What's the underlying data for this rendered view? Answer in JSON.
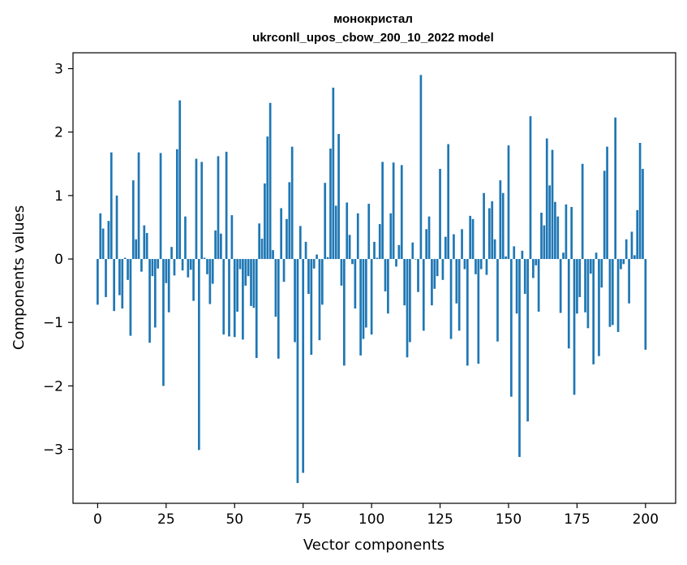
{
  "chart_data": {
    "type": "bar",
    "title": "монокристал",
    "subtitle": "ukrconll_upos_cbow_200_10_2022 model",
    "xlabel": "Vector components",
    "ylabel": "Components values",
    "xlim": [
      -9,
      211
    ],
    "ylim": [
      -3.85,
      3.25
    ],
    "xticks": [
      0,
      25,
      50,
      75,
      100,
      125,
      150,
      175,
      200
    ],
    "yticks": [
      -3,
      -2,
      -1,
      0,
      1,
      2,
      3
    ],
    "ytick_labels": [
      "−3",
      "−2",
      "−1",
      "0",
      "1",
      "2",
      "3"
    ],
    "grid": false,
    "bar_color": "#1f77b4",
    "values": [
      -0.72,
      0.72,
      0.48,
      -0.6,
      0.6,
      1.68,
      -0.82,
      1.0,
      -0.57,
      -0.78,
      0.02,
      -0.33,
      -1.21,
      1.24,
      0.31,
      1.68,
      -0.2,
      0.53,
      0.41,
      -1.32,
      -0.27,
      -1.08,
      -0.15,
      1.67,
      -2.0,
      -0.38,
      -0.84,
      0.19,
      -0.26,
      1.73,
      2.5,
      -0.18,
      0.67,
      -0.29,
      -0.17,
      -0.66,
      1.58,
      -3.01,
      1.53,
      0.02,
      -0.24,
      -0.71,
      -0.39,
      0.45,
      1.62,
      0.4,
      -1.19,
      1.69,
      -1.22,
      0.69,
      -1.23,
      -0.83,
      -0.16,
      -1.27,
      -0.42,
      -0.27,
      -0.74,
      -0.77,
      -1.56,
      0.56,
      0.32,
      1.19,
      1.93,
      2.46,
      0.14,
      -0.91,
      -1.57,
      0.8,
      -0.36,
      0.63,
      1.21,
      1.77,
      -1.31,
      -3.53,
      0.52,
      -3.37,
      0.27,
      -0.55,
      -1.51,
      -0.15,
      0.07,
      -1.28,
      -0.72,
      1.2,
      0.03,
      1.74,
      2.7,
      0.84,
      1.97,
      -0.42,
      -1.68,
      0.89,
      0.38,
      -0.08,
      -0.78,
      0.72,
      -1.52,
      -1.26,
      -1.08,
      0.87,
      -1.19,
      0.27,
      0.02,
      0.55,
      1.53,
      -0.51,
      -0.86,
      0.72,
      1.52,
      -0.12,
      0.22,
      1.48,
      -0.73,
      -1.55,
      -1.31,
      0.26,
      0.0,
      -0.52,
      2.9,
      -1.13,
      0.47,
      0.67,
      -0.73,
      -0.47,
      -0.27,
      1.42,
      -0.33,
      0.35,
      1.81,
      -1.26,
      0.39,
      -0.7,
      -1.13,
      0.47,
      -0.16,
      -1.68,
      0.68,
      0.63,
      -0.24,
      -1.65,
      -0.16,
      1.04,
      -0.25,
      0.8,
      0.91,
      0.31,
      -1.3,
      1.24,
      1.04,
      0.04,
      1.79,
      -2.17,
      0.2,
      -0.86,
      -3.12,
      0.13,
      -0.55,
      -2.56,
      2.25,
      -0.3,
      -0.1,
      -0.83,
      0.73,
      0.53,
      1.9,
      1.16,
      1.72,
      0.9,
      0.67,
      -0.85,
      0.1,
      0.86,
      -1.41,
      0.82,
      -2.14,
      -0.86,
      -0.6,
      1.5,
      -0.84,
      -1.09,
      -0.23,
      -1.66,
      0.1,
      -1.53,
      -0.45,
      1.39,
      1.77,
      -1.07,
      -1.04,
      2.23,
      -1.15,
      -0.16,
      -0.08,
      0.31,
      -0.7,
      0.43,
      0.06,
      0.77,
      1.83,
      1.42,
      -1.43
    ]
  }
}
